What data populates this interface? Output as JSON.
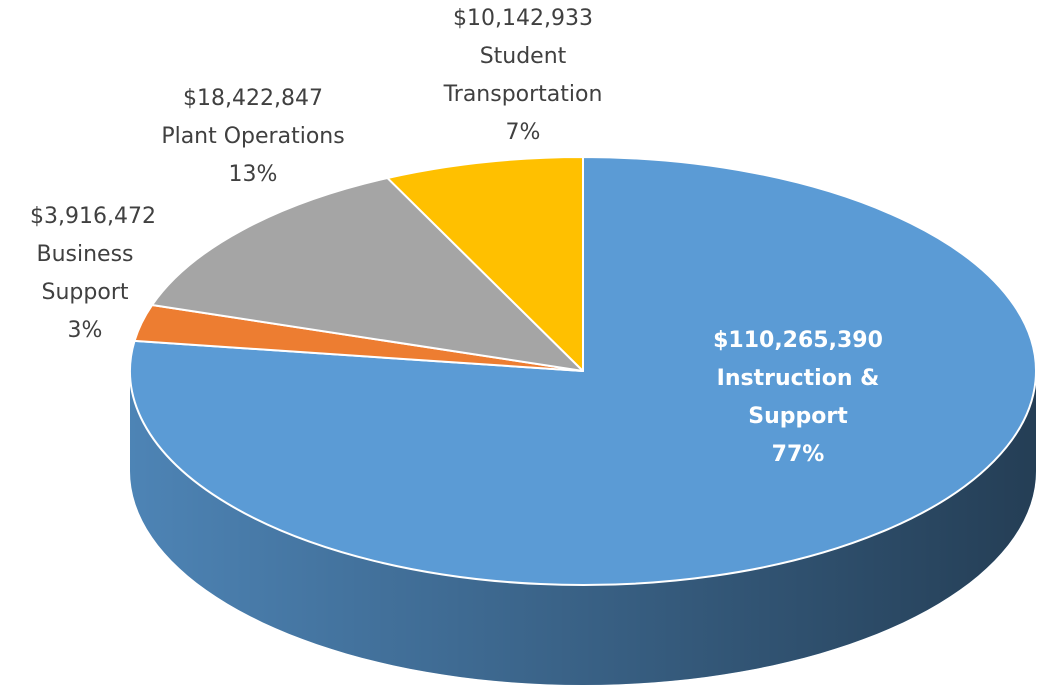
{
  "chart_data": {
    "type": "pie",
    "categories": [
      "Instruction & Support",
      "Business Support",
      "Plant Operations",
      "Student Transportation"
    ],
    "values": [
      110265390,
      3916472,
      18422847,
      10142933
    ],
    "value_labels": [
      "$110,265,390",
      "$3,916,472",
      "$18,422,847",
      "$10,142,933"
    ],
    "percents": [
      77,
      3,
      13,
      7
    ],
    "percent_labels": [
      "77%",
      "3%",
      "13%",
      "7%"
    ],
    "colors": [
      "#5b9bd5",
      "#ed7d31",
      "#a5a5a5",
      "#ffc000"
    ]
  }
}
